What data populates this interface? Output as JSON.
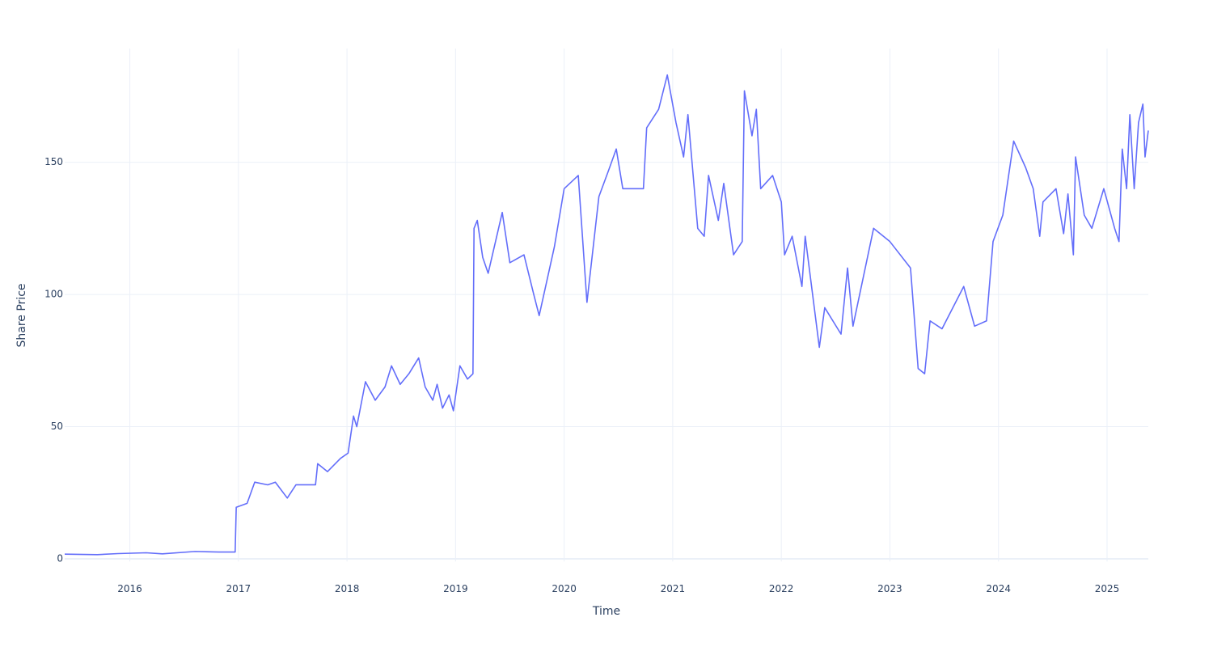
{
  "chart_data": {
    "type": "line",
    "x_label": "Time",
    "y_label": "Share Price",
    "x": [
      2015.4,
      2015.7,
      2015.89,
      2016.15,
      2016.3,
      2016.6,
      2016.82,
      2016.97,
      2016.98,
      2017.08,
      2017.15,
      2017.27,
      2017.34,
      2017.45,
      2017.53,
      2017.71,
      2017.73,
      2017.82,
      2017.94,
      2018.01,
      2018.06,
      2018.09,
      2018.17,
      2018.26,
      2018.35,
      2018.41,
      2018.49,
      2018.57,
      2018.66,
      2018.72,
      2018.79,
      2018.83,
      2018.88,
      2018.94,
      2018.98,
      2019.04,
      2019.11,
      2019.16,
      2019.17,
      2019.2,
      2019.25,
      2019.3,
      2019.43,
      2019.5,
      2019.63,
      2019.72,
      2019.77,
      2019.91,
      2020.0,
      2020.13,
      2020.21,
      2020.32,
      2020.41,
      2020.48,
      2020.54,
      2020.73,
      2020.76,
      2020.87,
      2020.95,
      2021.03,
      2021.1,
      2021.14,
      2021.23,
      2021.29,
      2021.33,
      2021.42,
      2021.47,
      2021.56,
      2021.64,
      2021.66,
      2021.73,
      2021.77,
      2021.81,
      2021.92,
      2022.0,
      2022.03,
      2022.1,
      2022.19,
      2022.22,
      2022.35,
      2022.4,
      2022.55,
      2022.61,
      2022.66,
      2022.85,
      2023.0,
      2023.19,
      2023.26,
      2023.32,
      2023.37,
      2023.48,
      2023.68,
      2023.78,
      2023.89,
      2023.95,
      2024.04,
      2024.14,
      2024.25,
      2024.32,
      2024.38,
      2024.41,
      2024.53,
      2024.6,
      2024.64,
      2024.69,
      2024.71,
      2024.79,
      2024.86,
      2024.97,
      2025.07,
      2025.11,
      2025.14,
      2025.18,
      2025.21,
      2025.25,
      2025.29,
      2025.33,
      2025.35,
      2025.38
    ],
    "series": [
      {
        "name": "Share Price",
        "color": "#636efa",
        "values": [
          1.8,
          1.6,
          2.0,
          2.3,
          1.9,
          2.8,
          2.6,
          2.6,
          19.5,
          21,
          29,
          28,
          29,
          23,
          28,
          28,
          36,
          33,
          38,
          40,
          54,
          50,
          67,
          60,
          65,
          73,
          66,
          70,
          76,
          65,
          60,
          66,
          57,
          62,
          56,
          73,
          68,
          70,
          125,
          128,
          114,
          108,
          131,
          112,
          115,
          100,
          92,
          118,
          140,
          145,
          97,
          137,
          147,
          155,
          140,
          140,
          163,
          170,
          183,
          165,
          152,
          168,
          125,
          122,
          145,
          128,
          142,
          115,
          120,
          177,
          160,
          170,
          140,
          145,
          135,
          115,
          122,
          103,
          122,
          80,
          95,
          85,
          110,
          88,
          125,
          120,
          110,
          72,
          70,
          90,
          87,
          103,
          88,
          90,
          120,
          130,
          158,
          148,
          140,
          122,
          135,
          140,
          123,
          138,
          115,
          152,
          130,
          125,
          140,
          125,
          120,
          155,
          140,
          168,
          140,
          165,
          172,
          152,
          162
        ]
      }
    ],
    "xlim": [
      2015.4,
      2025.38
    ],
    "xticks": [
      2016,
      2017,
      2018,
      2019,
      2020,
      2021,
      2022,
      2023,
      2024,
      2025
    ],
    "ylim": [
      -1,
      193
    ],
    "yticks": [
      0,
      50,
      100,
      150
    ],
    "grid": true
  }
}
